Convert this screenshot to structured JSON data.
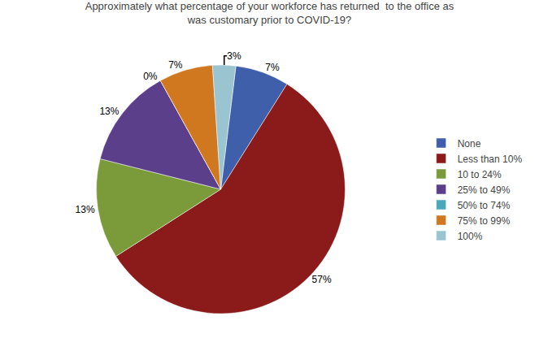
{
  "chart_data": {
    "type": "pie",
    "title": "Approximately what percentage of your workforce has returned  to the office as\nwas customary prior to COVID-19?",
    "categories": [
      "None",
      "Less than 10%",
      "10 to 24%",
      "25% to 49%",
      "50% to 74%",
      "75% to 99%",
      "100%"
    ],
    "values": [
      7,
      57,
      13,
      13,
      0,
      7,
      3
    ],
    "value_labels": [
      "7%",
      "57%",
      "13%",
      "13%",
      "0%",
      "7%",
      "3%"
    ],
    "colors": [
      "#3F5FAA",
      "#8B1A1A",
      "#7B9B3A",
      "#5B3F8A",
      "#4BA8B8",
      "#D07820",
      "#9AC4D0"
    ],
    "data_labels": true,
    "legend": "right"
  }
}
